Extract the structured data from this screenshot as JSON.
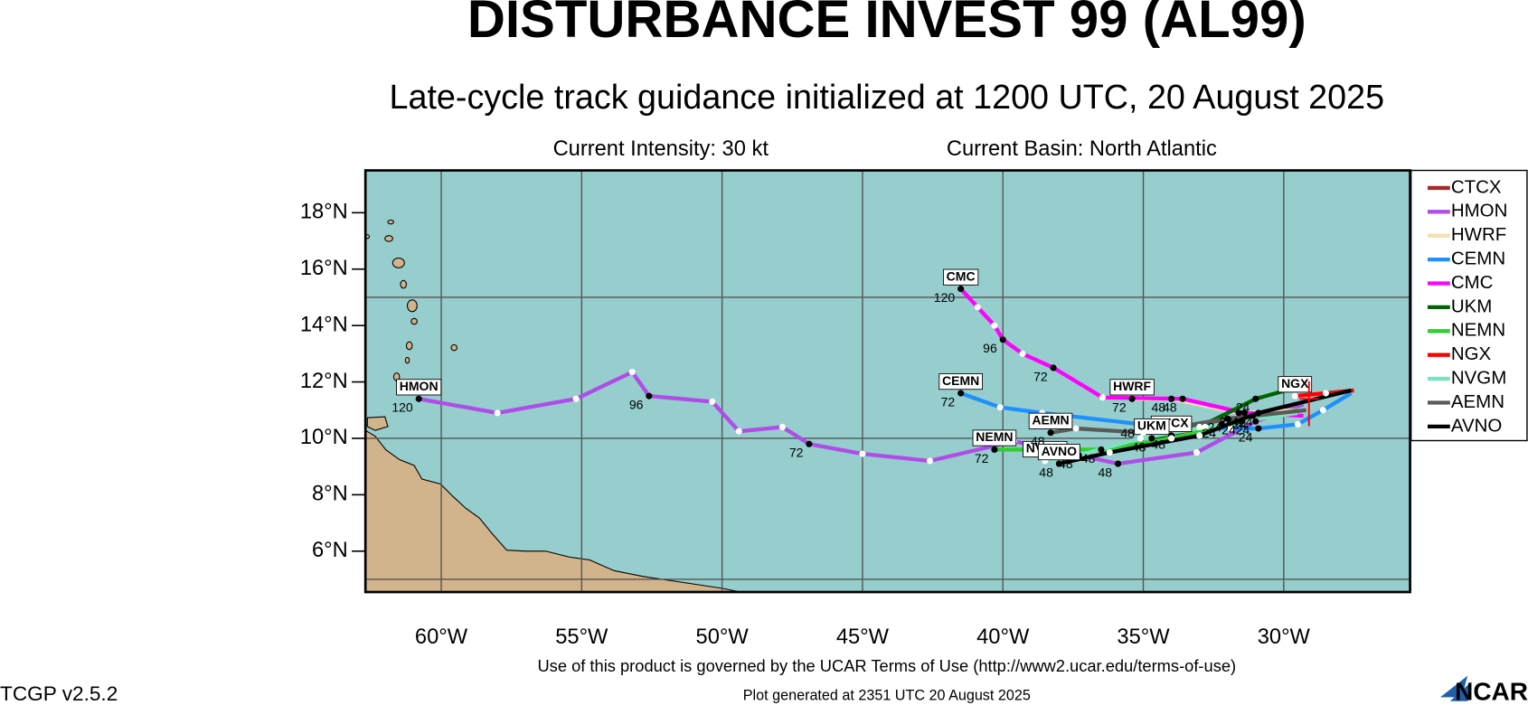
{
  "chart_data": {
    "type": "track-map",
    "title": "DISTURBANCE INVEST 99 (AL99)",
    "subtitle": "Late-cycle track guidance initialized at 1200 UTC, 20 August 2025",
    "intensity": "Current Intensity: 30 kt",
    "basin": "Current Basin: North Atlantic",
    "terms": "Use of this product is governed by the UCAR Terms of Use (http://www2.ucar.edu/terms-of-use)",
    "version": "TCGP v2.5.2",
    "generated": "Plot generated at 2351 UTC   20 August 2025",
    "logo": "NCAR",
    "xlim": [
      -62.7,
      -25.5
    ],
    "ylim": [
      4.55,
      19.5
    ],
    "xticks": [
      {
        "value": -60,
        "label": "60°W"
      },
      {
        "value": -55,
        "label": "55°W"
      },
      {
        "value": -50,
        "label": "50°W"
      },
      {
        "value": -45,
        "label": "45°W"
      },
      {
        "value": -40,
        "label": "40°W"
      },
      {
        "value": -35,
        "label": "35°W"
      },
      {
        "value": -30,
        "label": "30°W"
      }
    ],
    "yticks": [
      {
        "value": 6,
        "label": "6°N"
      },
      {
        "value": 8,
        "label": "8°N"
      },
      {
        "value": 10,
        "label": "10°N"
      },
      {
        "value": 12,
        "label": "12°N"
      },
      {
        "value": 14,
        "label": "14°N"
      },
      {
        "value": 16,
        "label": "16°N"
      },
      {
        "value": 18,
        "label": "18°N"
      }
    ],
    "ygrid": [
      5,
      10,
      15
    ],
    "ocean_color": "#96cdcd",
    "land_color": "#d2b48c",
    "current_position": {
      "x": -29.1,
      "y": 11.4,
      "color": "#ff0000"
    },
    "series": [
      {
        "name": "CTCX",
        "color": "#a52a2a",
        "x": [
          -29.4,
          -31.1,
          -32.8,
          -34.0
        ],
        "y": [
          11.2,
          10.8,
          10.4,
          10.1
        ],
        "hours": [
          null,
          24,
          null,
          48
        ]
      },
      {
        "name": "HMON",
        "color": "#b04ce8",
        "x": [
          -29.3,
          -31.0,
          -33.1,
          -35.9,
          -39.6,
          -42.6,
          -45.0,
          -46.9,
          -47.85,
          -49.4,
          -50.35,
          -52.6,
          -53.2,
          -55.2,
          -58.0,
          -60.8
        ],
        "y": [
          11.2,
          10.6,
          9.5,
          9.1,
          9.9,
          9.2,
          9.45,
          9.8,
          10.4,
          10.25,
          11.3,
          11.5,
          12.35,
          11.4,
          10.9,
          11.4
        ],
        "hours": [
          null,
          24,
          null,
          48,
          null,
          null,
          null,
          72,
          null,
          null,
          null,
          96,
          null,
          null,
          null,
          120
        ]
      },
      {
        "name": "HWRF",
        "color": "#f5deb3",
        "x": [
          -29.5,
          -31.6,
          -34.0,
          -35.4
        ],
        "y": [
          11.0,
          10.9,
          11.4,
          11.4
        ],
        "hours": [
          null,
          24,
          48,
          72
        ]
      },
      {
        "name": "CEMN",
        "color": "#1e90ff",
        "x": [
          -27.6,
          -28.6,
          -29.5,
          -30.9,
          -31.9,
          -35.1,
          -38.6,
          -40.1,
          -41.5
        ],
        "y": [
          11.6,
          11.0,
          10.5,
          10.35,
          10.35,
          10.5,
          10.9,
          11.1,
          11.6
        ],
        "hours": [
          null,
          null,
          null,
          24,
          null,
          48,
          null,
          null,
          72
        ]
      },
      {
        "name": "CMC",
        "color": "#ff00ff",
        "x": [
          -29.3,
          -31.4,
          -33.6,
          -36.45,
          -38.2,
          -39.3,
          -40.0,
          -40.3,
          -40.9,
          -41.5
        ],
        "y": [
          10.8,
          10.9,
          11.4,
          11.45,
          12.5,
          13.0,
          13.5,
          14.0,
          14.65,
          15.3
        ],
        "hours": [
          null,
          24,
          48,
          null,
          72,
          null,
          96,
          null,
          null,
          120
        ]
      },
      {
        "name": "UKM",
        "color": "#006400",
        "x": [
          -29.2,
          -31.0,
          -33.0,
          -34.7
        ],
        "y": [
          11.9,
          11.4,
          10.4,
          10.0
        ],
        "hours": [
          null,
          24,
          null,
          48
        ]
      },
      {
        "name": "NEMN",
        "color": "#32cd32",
        "x": [
          -29.5,
          -31.5,
          -34.0,
          -36.5,
          -40.3
        ],
        "y": [
          11.0,
          10.6,
          10.0,
          9.6,
          9.6
        ],
        "hours": [
          null,
          24,
          null,
          48,
          72
        ]
      },
      {
        "name": "NGX",
        "color": "#ff0000",
        "x": [
          -27.5,
          -28.5,
          -29.6
        ],
        "y": [
          11.7,
          11.6,
          11.5
        ],
        "hours": [
          null,
          null,
          null
        ]
      },
      {
        "name": "NVGM",
        "color": "#7fe0c4",
        "x": [
          -29.5,
          -32.2,
          -35.1,
          -37.3,
          -38.5
        ],
        "y": [
          10.9,
          10.5,
          10.0,
          9.4,
          9.2
        ],
        "hours": [
          null,
          24,
          null,
          48,
          null
        ]
      },
      {
        "name": "AEMN",
        "color": "#5a5a5a",
        "x": [
          -29.2,
          -32.0,
          -35.0,
          -37.4,
          -38.3
        ],
        "y": [
          11.0,
          10.7,
          10.2,
          10.35,
          10.2
        ],
        "hours": [
          null,
          24,
          null,
          null,
          48
        ]
      },
      {
        "name": "AVNO",
        "color": "#000000",
        "x": [
          -27.6,
          -30.9,
          -33.0,
          -36.2,
          -38.0
        ],
        "y": [
          11.7,
          10.9,
          10.1,
          9.5,
          9.1
        ],
        "hours": [
          null,
          24,
          null,
          null,
          48
        ]
      }
    ]
  }
}
